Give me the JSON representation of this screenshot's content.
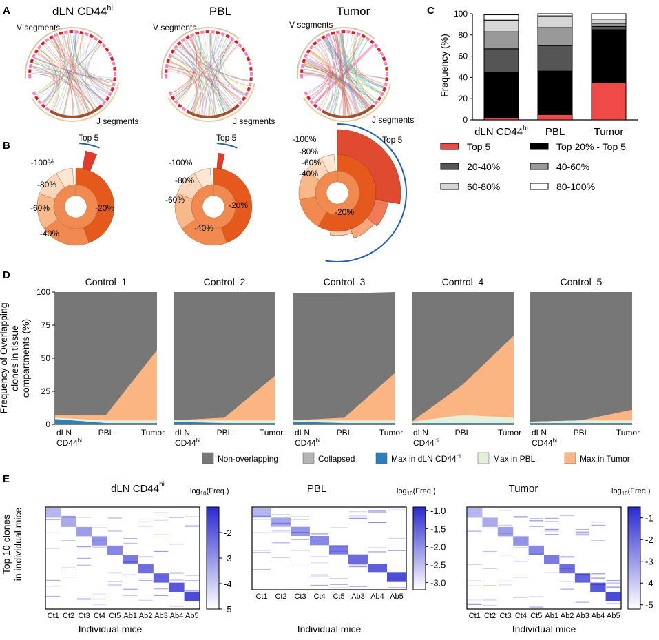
{
  "panel_letters": {
    "a": "A",
    "b": "B",
    "c": "C",
    "d": "D",
    "e": "E"
  },
  "colors": {
    "top5": "#f04a48",
    "top20": "#000000",
    "b20_40": "#555555",
    "b40_60": "#999999",
    "b60_80": "#d6d6d6",
    "b80_100": "#ffffff",
    "donut_dark": "#e55a1c",
    "donut_mid": "#f08a50",
    "donut_light": "#f7b98a",
    "donut_pale": "#fbd8bd",
    "top5_arc": "#1f5fb5",
    "nonoverlap": "#777777",
    "collapsed": "#b5b5b5",
    "max_dln": "#2c7fb8",
    "max_pbl": "#e3f1dc",
    "max_tumor": "#fbb583",
    "heat": "#2a2ad0"
  },
  "panel_a": {
    "titles": [
      "dLN CD44",
      "PBL",
      "Tumor"
    ],
    "title_sup": "hi",
    "v_label": "V segments",
    "j_label": "J segments"
  },
  "panel_b": {
    "top_label": "Top 5",
    "donuts": [
      {
        "labels": [
          "-100%",
          "-80%",
          "-60%",
          "-40%",
          "-20%"
        ]
      },
      {
        "labels": [
          "-100%",
          "-80%",
          "-60%",
          "-40%",
          "-20%"
        ]
      },
      {
        "labels": [
          "-100%",
          "-80%",
          "-60%",
          "-40%",
          "-20%"
        ]
      }
    ]
  },
  "chart_data": [
    {
      "panel": "C",
      "type": "bar",
      "stacked": true,
      "ylabel": "Frequency (%)",
      "ylim": [
        0,
        100
      ],
      "yticks": [
        "0",
        "20",
        "40",
        "60",
        "80",
        "100"
      ],
      "categories": [
        "dLN CD44",
        "PBL",
        "Tumor"
      ],
      "category_sup": "hi",
      "series": [
        {
          "name": "Top 5",
          "values": [
            2,
            5,
            35
          ]
        },
        {
          "name": "Top 20% - Top 5",
          "values": [
            43,
            41,
            50
          ]
        },
        {
          "name": "20-40%",
          "values": [
            22,
            24,
            3
          ]
        },
        {
          "name": "40-60%",
          "values": [
            16,
            17,
            3
          ]
        },
        {
          "name": "60-80%",
          "values": [
            11,
            11,
            4
          ]
        },
        {
          "name": "80-100%",
          "values": [
            5,
            2,
            5
          ]
        }
      ],
      "legend": [
        "Top 5",
        "Top 20% - Top 5",
        "20-40%",
        "40-60%",
        "60-80%",
        "80-100%"
      ]
    },
    {
      "panel": "D",
      "type": "area",
      "ylabel_lines": [
        "Frequency of Overlapping",
        "clones in tissue",
        "compartments (%)"
      ],
      "ylim": [
        0,
        100
      ],
      "yticks": [
        "0",
        "25",
        "50",
        "75",
        "100"
      ],
      "x": [
        "dLN",
        "PBL",
        "Tumor"
      ],
      "x_sub": "CD44",
      "x_sup": "hi",
      "series_names": [
        "Non-overlapping",
        "Collapsed",
        "Max in dLN CD44",
        "Max in PBL",
        "Max in Tumor"
      ],
      "legend_sup": "hi",
      "panels": [
        {
          "title": "Control_1",
          "overlap_top": [
            7,
            7,
            56
          ],
          "dln": [
            4,
            1,
            1
          ],
          "pbl": [
            1,
            2,
            2
          ],
          "top_edge": [
            100,
            100,
            100
          ]
        },
        {
          "title": "Control_2",
          "overlap_top": [
            3,
            5,
            37
          ],
          "dln": [
            2,
            1,
            1
          ],
          "pbl": [
            1,
            2,
            2
          ],
          "top_edge": [
            100,
            100,
            100
          ]
        },
        {
          "title": "Control_3",
          "overlap_top": [
            3,
            5,
            39
          ],
          "dln": [
            2,
            1,
            1
          ],
          "pbl": [
            1,
            2,
            2
          ],
          "top_edge": [
            99,
            99,
            100
          ]
        },
        {
          "title": "Control_4",
          "overlap_top": [
            2,
            30,
            67
          ],
          "dln": [
            1,
            1,
            1
          ],
          "pbl": [
            1,
            6,
            4
          ],
          "top_edge": [
            100,
            100,
            100
          ]
        },
        {
          "title": "Control_5",
          "overlap_top": [
            2,
            3,
            11
          ],
          "dln": [
            1,
            1,
            1
          ],
          "pbl": [
            1,
            2,
            2
          ],
          "top_edge": [
            100,
            100,
            100
          ]
        }
      ]
    },
    {
      "panel": "E",
      "type": "heatmap",
      "ylabel_lines": [
        "Top 10 clones",
        "in individual mice"
      ],
      "xlabel": "Individual mice",
      "colorbar_label": "log10(Freq.)",
      "colorbar_label_base": "log",
      "colorbar_label_sub": "10",
      "colorbar_label_rest": "(Freq.)",
      "maps": [
        {
          "title": "dLN CD44",
          "title_sup": "hi",
          "columns": [
            "Ct1",
            "Ct2",
            "Ct3",
            "Ct4",
            "Ct5",
            "Ab1",
            "Ab2",
            "Ab3",
            "Ab4",
            "Ab5"
          ],
          "colorbar_ticks": [
            "-2",
            "-3",
            "-4",
            "-5"
          ],
          "clim": [
            -5,
            -1
          ]
        },
        {
          "title": "PBL",
          "title_sup": "",
          "columns": [
            "Ct1",
            "Ct2",
            "Ct3",
            "Ct4",
            "Ct5",
            "Ab3",
            "Ab4",
            "Ab5"
          ],
          "colorbar_ticks": [
            "-1.0",
            "-1.5",
            "-2.0",
            "-2.5",
            "-3.0"
          ],
          "clim": [
            -3.2,
            -0.9
          ]
        },
        {
          "title": "Tumor",
          "title_sup": "",
          "columns": [
            "Ct1",
            "Ct2",
            "Ct3",
            "Ct4",
            "Ct5",
            "Ab1",
            "Ab2",
            "Ab3",
            "Ab4",
            "Ab5"
          ],
          "colorbar_ticks": [
            "-1",
            "-2",
            "-3",
            "-4",
            "-5"
          ],
          "clim": [
            -5.2,
            -0.5
          ]
        }
      ]
    }
  ]
}
